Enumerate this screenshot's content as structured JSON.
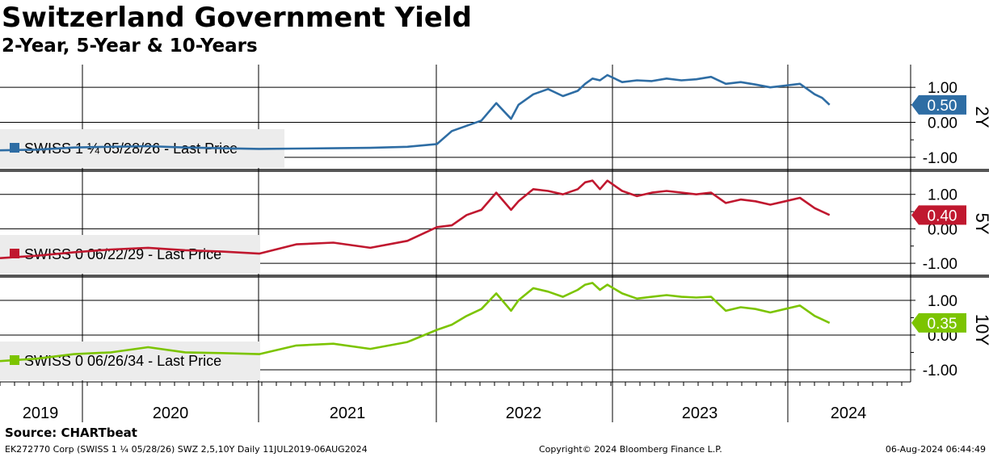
{
  "title": "Switzerland Government Yield",
  "subtitle": "2-Year, 5-Year & 10-Years",
  "source": "Source: CHARTbeat",
  "footer": {
    "left": "EK272770 Corp (SWISS 1 ¼ 05/28/26) SWZ 2,5,10Y  Daily 11JUL2019-06AUG2024",
    "center": "Copyright© 2024 Bloomberg Finance L.P.",
    "right": "06-Aug-2024 06:44:49"
  },
  "colors": {
    "2Y": "#2e6da4",
    "5Y": "#c0182f",
    "10Y": "#7cc400"
  },
  "chart_data": {
    "type": "line",
    "x_unit": "year",
    "xlim": [
      2019.0,
      2025.0
    ],
    "year_labels": [
      "2019",
      "2020",
      "2021",
      "2022",
      "2023",
      "2024"
    ],
    "panels": [
      {
        "key": "2Y",
        "axis_label": "2Y",
        "legend": "SWISS 1 ¼  05/28/26 - Last Price",
        "last_value_label": "0.50",
        "ylim": [
          -1.35,
          1.65
        ],
        "yticks": [
          1.0,
          0.0,
          -1.0
        ],
        "ytick_labels": [
          "1.00",
          "0.00",
          "-1.00"
        ],
        "x": [
          2019.0,
          2019.25,
          2019.5,
          2019.75,
          2020.0,
          2020.25,
          2020.5,
          2020.75,
          2021.0,
          2021.25,
          2021.5,
          2021.75,
          2021.95,
          2022.05,
          2022.15,
          2022.25,
          2022.35,
          2022.45,
          2022.5,
          2022.6,
          2022.7,
          2022.8,
          2022.9,
          2022.95,
          2023.0,
          2023.05,
          2023.1,
          2023.2,
          2023.3,
          2023.4,
          2023.5,
          2023.6,
          2023.7,
          2023.8,
          2023.9,
          2024.0,
          2024.1,
          2024.2,
          2024.3,
          2024.4,
          2024.5,
          2024.55,
          2024.6
        ],
        "y": [
          -0.8,
          -0.78,
          -0.72,
          -0.7,
          -0.68,
          -0.72,
          -0.74,
          -0.76,
          -0.75,
          -0.74,
          -0.73,
          -0.7,
          -0.62,
          -0.25,
          -0.1,
          0.05,
          0.55,
          0.1,
          0.5,
          0.8,
          0.95,
          0.75,
          0.9,
          1.1,
          1.25,
          1.2,
          1.35,
          1.15,
          1.2,
          1.18,
          1.25,
          1.2,
          1.23,
          1.3,
          1.1,
          1.15,
          1.08,
          1.0,
          1.05,
          1.1,
          0.8,
          0.7,
          0.5
        ]
      },
      {
        "key": "5Y",
        "axis_label": "5Y",
        "legend": "SWISS 0 06/22/29 - Last Price",
        "last_value_label": "0.40",
        "ylim": [
          -1.35,
          1.65
        ],
        "yticks": [
          1.0,
          0.0,
          -1.0
        ],
        "ytick_labels": [
          "1.00",
          "0.00",
          "-1.00"
        ],
        "x": [
          2019.0,
          2019.25,
          2019.5,
          2019.75,
          2020.0,
          2020.25,
          2020.5,
          2020.75,
          2021.0,
          2021.25,
          2021.5,
          2021.75,
          2021.95,
          2022.05,
          2022.15,
          2022.25,
          2022.35,
          2022.45,
          2022.5,
          2022.6,
          2022.7,
          2022.8,
          2022.9,
          2022.95,
          2023.0,
          2023.05,
          2023.1,
          2023.2,
          2023.3,
          2023.4,
          2023.5,
          2023.6,
          2023.7,
          2023.8,
          2023.9,
          2024.0,
          2024.1,
          2024.2,
          2024.3,
          2024.4,
          2024.5,
          2024.55,
          2024.6
        ],
        "y": [
          -0.85,
          -0.78,
          -0.68,
          -0.6,
          -0.55,
          -0.62,
          -0.66,
          -0.72,
          -0.45,
          -0.4,
          -0.55,
          -0.35,
          0.05,
          0.1,
          0.4,
          0.55,
          1.05,
          0.55,
          0.8,
          1.15,
          1.1,
          1.0,
          1.15,
          1.35,
          1.4,
          1.15,
          1.4,
          1.1,
          0.95,
          1.05,
          1.1,
          1.05,
          1.0,
          1.05,
          0.75,
          0.85,
          0.8,
          0.7,
          0.8,
          0.9,
          0.6,
          0.5,
          0.4
        ]
      },
      {
        "key": "10Y",
        "axis_label": "10Y",
        "legend": "SWISS 0 06/26/34 - Last Price",
        "last_value_label": "0.35",
        "ylim": [
          -1.35,
          1.65
        ],
        "yticks": [
          1.0,
          0.0,
          -1.0
        ],
        "ytick_labels": [
          "1.00",
          "0.00",
          "-1.00"
        ],
        "x": [
          2019.0,
          2019.25,
          2019.5,
          2019.75,
          2020.0,
          2020.25,
          2020.5,
          2020.75,
          2021.0,
          2021.25,
          2021.5,
          2021.75,
          2021.95,
          2022.05,
          2022.15,
          2022.25,
          2022.35,
          2022.45,
          2022.5,
          2022.6,
          2022.7,
          2022.8,
          2022.9,
          2022.95,
          2023.0,
          2023.05,
          2023.1,
          2023.2,
          2023.3,
          2023.4,
          2023.5,
          2023.6,
          2023.7,
          2023.8,
          2023.9,
          2024.0,
          2024.1,
          2024.2,
          2024.3,
          2024.4,
          2024.5,
          2024.55,
          2024.6
        ],
        "y": [
          -0.75,
          -0.68,
          -0.55,
          -0.5,
          -0.35,
          -0.5,
          -0.52,
          -0.55,
          -0.3,
          -0.25,
          -0.4,
          -0.2,
          0.15,
          0.3,
          0.55,
          0.75,
          1.2,
          0.7,
          1.0,
          1.35,
          1.25,
          1.1,
          1.3,
          1.45,
          1.5,
          1.3,
          1.45,
          1.2,
          1.05,
          1.1,
          1.15,
          1.1,
          1.08,
          1.1,
          0.7,
          0.8,
          0.75,
          0.65,
          0.75,
          0.85,
          0.55,
          0.45,
          0.35
        ]
      }
    ]
  }
}
